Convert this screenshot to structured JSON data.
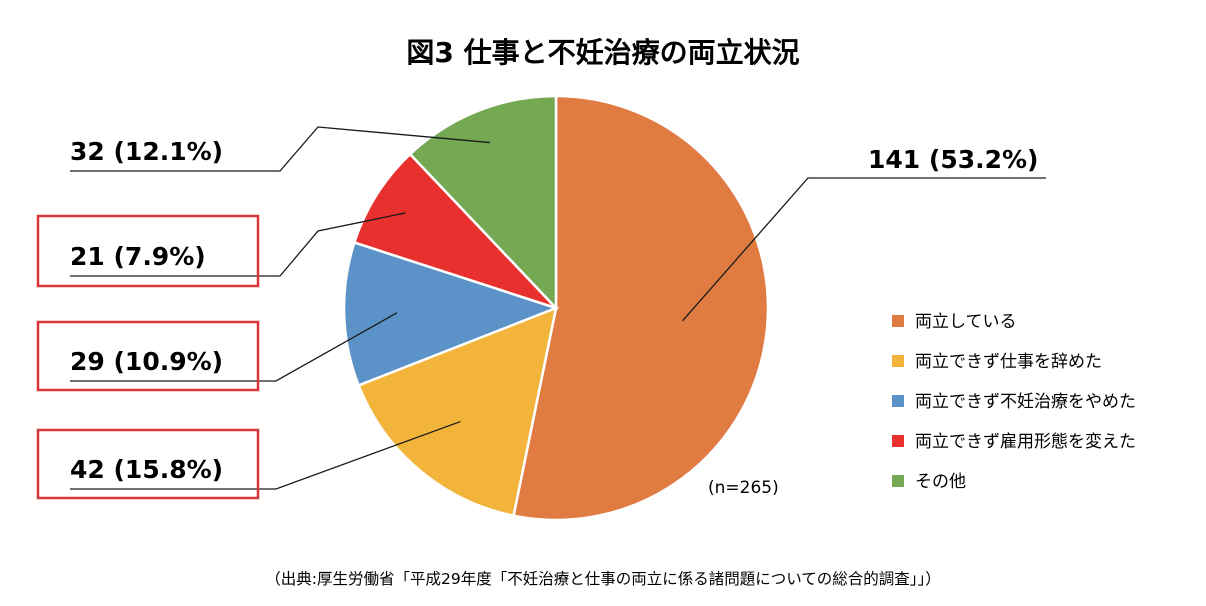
{
  "chart_data": {
    "type": "pie",
    "title": "図3 仕事と不妊治療の両立状況",
    "categories": [
      "両立している",
      "両立できず仕事を辞めた",
      "両立できず不妊治療をやめた",
      "両立できず雇用形態を変えた",
      "その他"
    ],
    "values": [
      141,
      42,
      29,
      21,
      32
    ],
    "percentages": [
      53.2,
      15.8,
      10.9,
      7.9,
      12.1
    ],
    "colors": [
      "#E07B42",
      "#F2B43A",
      "#5B93C8",
      "#E8302E",
      "#74A852"
    ],
    "data_labels": [
      "141 (53.2%)",
      "42 (15.8%)",
      "29 (10.9%)",
      "21 (7.9%)",
      "32 (12.1%)"
    ],
    "highlighted": [
      false,
      true,
      true,
      true,
      false
    ],
    "highlight_color": "#D9383A",
    "start": "12 o'clock",
    "direction": "clockwise",
    "legend_position": "right",
    "note": "(n=265)",
    "source": "（出典:厚生労働省「平成29年度「不妊治療と仕事の両立に係る諸問題についての総合的調査」」）"
  }
}
